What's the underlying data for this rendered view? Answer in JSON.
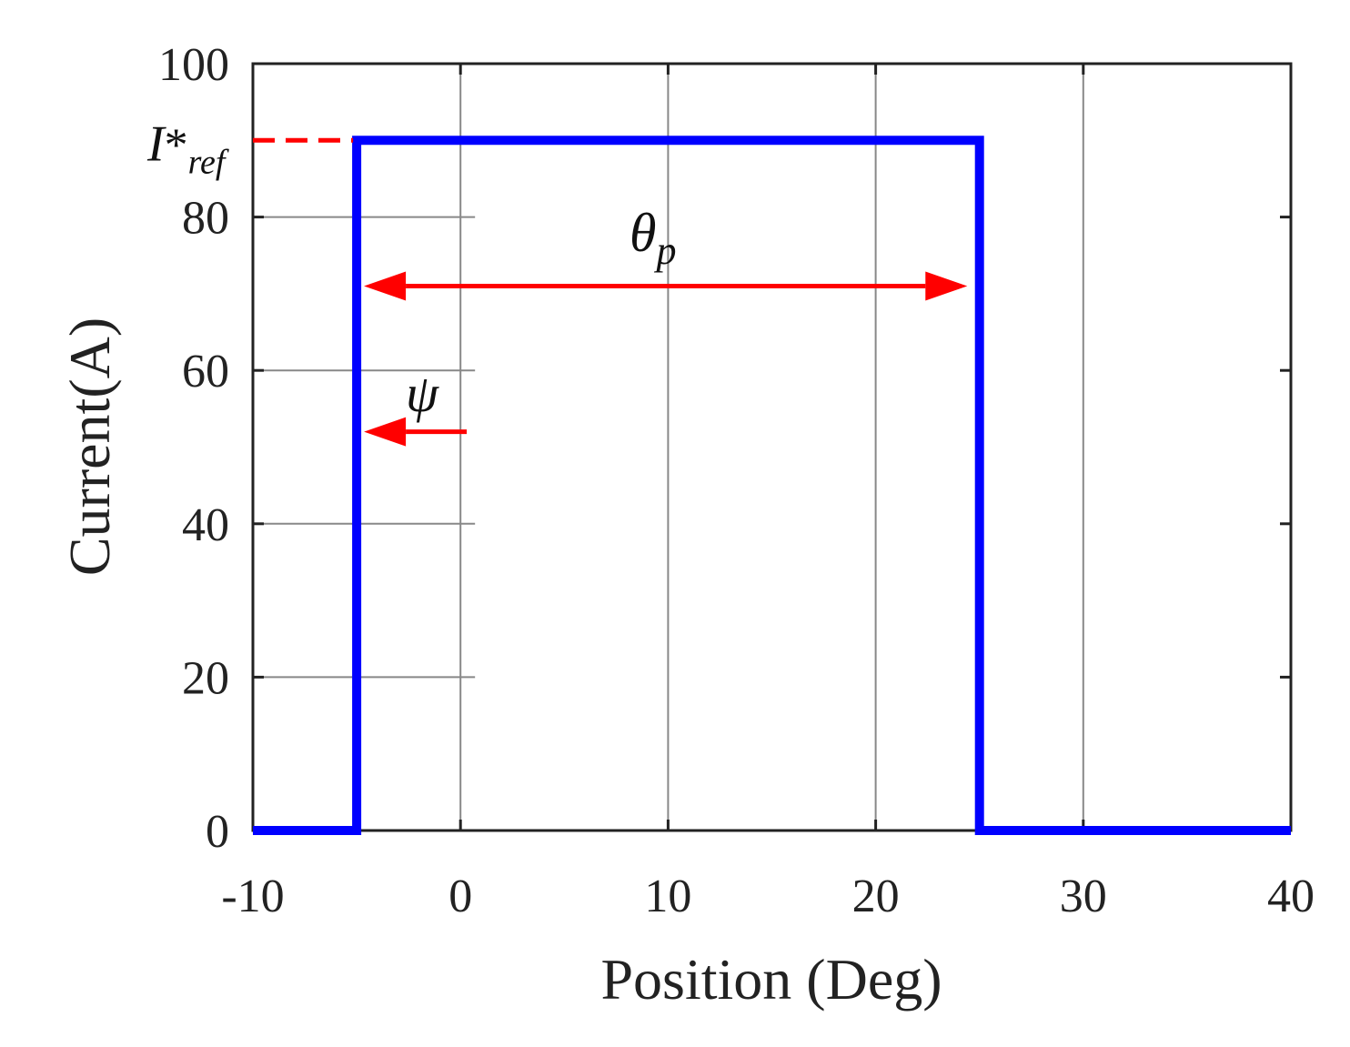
{
  "chart_data": {
    "type": "line",
    "title": "",
    "xlabel": "Position (Deg)",
    "ylabel": "Current(A)",
    "xlim": [
      -10,
      40
    ],
    "ylim": [
      0,
      100
    ],
    "xticks": [
      -10,
      0,
      10,
      20,
      30,
      40
    ],
    "yticks": [
      0,
      20,
      40,
      60,
      80,
      100
    ],
    "xtick_labels": [
      "-10",
      "0",
      "10",
      "20",
      "30",
      "40"
    ],
    "ytick_labels": [
      "0",
      "20",
      "40",
      "60",
      "80",
      "100"
    ],
    "grid": true,
    "series": [
      {
        "color": "#0000ff",
        "x": [
          -10,
          -5,
          -5,
          25,
          25,
          40
        ],
        "y": [
          0,
          0,
          90,
          90,
          0,
          0
        ]
      }
    ],
    "annotations": {
      "iref": {
        "main": "I",
        "star": "*",
        "sub": "ref",
        "value": 90,
        "color": "#ff0000"
      },
      "theta": {
        "main": "θ",
        "sub": "p",
        "arrow_from": -5,
        "arrow_to": 24.5,
        "y": 71,
        "color": "#ff0000"
      },
      "psi": {
        "label": "ψ",
        "arrow_from": 0.3,
        "arrow_to": -5,
        "y": 52,
        "color": "#ff0000"
      }
    }
  }
}
